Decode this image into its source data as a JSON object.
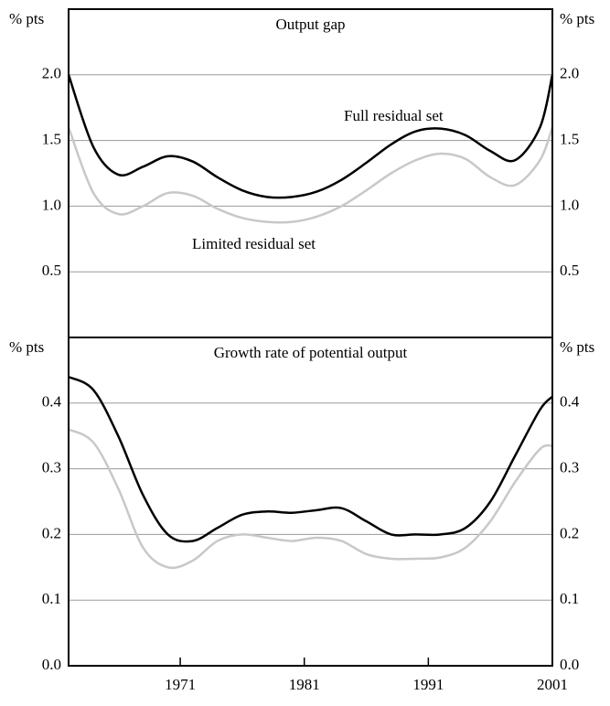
{
  "chart_data": [
    {
      "type": "line",
      "title": "Output gap",
      "ylabel": "% pts",
      "x": [
        1962,
        1964,
        1966,
        1968,
        1970,
        1972,
        1974,
        1976,
        1978,
        1980,
        1982,
        1984,
        1986,
        1988,
        1990,
        1992,
        1994,
        1996,
        1998,
        2000,
        2001
      ],
      "xlim": [
        1962,
        2001
      ],
      "ylim": [
        0,
        2.5
      ],
      "yticks": [
        {
          "value": 0.5,
          "label": "0.5"
        },
        {
          "value": 1,
          "label": "1.0"
        },
        {
          "value": 1.5,
          "label": "1.5"
        },
        {
          "value": 2,
          "label": "2.0"
        }
      ],
      "grid": true,
      "series": [
        {
          "name": "Full residual set",
          "color": "#000000",
          "values": [
            2.0,
            1.45,
            1.24,
            1.3,
            1.38,
            1.34,
            1.22,
            1.12,
            1.07,
            1.07,
            1.11,
            1.2,
            1.33,
            1.47,
            1.57,
            1.59,
            1.54,
            1.42,
            1.35,
            1.6,
            2.0
          ]
        },
        {
          "name": "Limited residual set",
          "color": "#c8c8c8",
          "values": [
            1.6,
            1.1,
            0.94,
            1.0,
            1.1,
            1.08,
            0.98,
            0.91,
            0.88,
            0.88,
            0.92,
            1.0,
            1.12,
            1.25,
            1.35,
            1.4,
            1.36,
            1.22,
            1.16,
            1.35,
            1.6
          ]
        }
      ]
    },
    {
      "type": "line",
      "title": "Growth rate of potential output",
      "ylabel": "% pts",
      "x": [
        1962,
        1964,
        1966,
        1968,
        1970,
        1972,
        1974,
        1976,
        1978,
        1980,
        1982,
        1984,
        1986,
        1988,
        1990,
        1992,
        1994,
        1996,
        1998,
        2000,
        2001
      ],
      "xlim": [
        1962,
        2001
      ],
      "xticks": [
        1971,
        1981,
        1991,
        2001
      ],
      "ylim": [
        0,
        0.5
      ],
      "yticks": [
        {
          "value": 0,
          "label": "0.0"
        },
        {
          "value": 0.1,
          "label": "0.1"
        },
        {
          "value": 0.2,
          "label": "0.2"
        },
        {
          "value": 0.3,
          "label": "0.3"
        },
        {
          "value": 0.4,
          "label": "0.4"
        }
      ],
      "grid": true,
      "series": [
        {
          "color": "#000000",
          "values": [
            0.44,
            0.42,
            0.35,
            0.26,
            0.2,
            0.19,
            0.21,
            0.23,
            0.235,
            0.233,
            0.237,
            0.24,
            0.22,
            0.2,
            0.2,
            0.2,
            0.21,
            0.25,
            0.32,
            0.39,
            0.41
          ]
        },
        {
          "color": "#c8c8c8",
          "values": [
            0.36,
            0.34,
            0.27,
            0.18,
            0.15,
            0.16,
            0.19,
            0.2,
            0.195,
            0.19,
            0.195,
            0.19,
            0.17,
            0.163,
            0.163,
            0.165,
            0.18,
            0.22,
            0.28,
            0.33,
            0.335
          ]
        }
      ]
    }
  ]
}
